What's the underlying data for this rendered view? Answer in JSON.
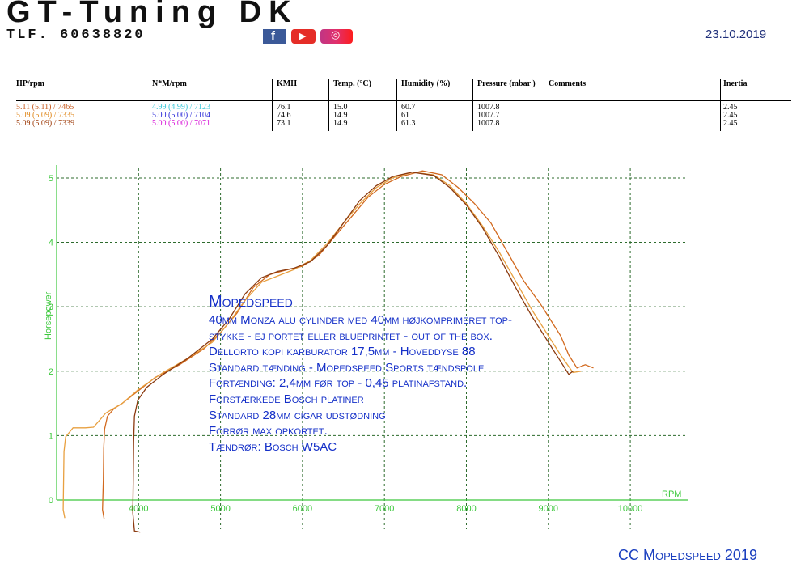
{
  "header": {
    "logo_name": "GT-Tuning DK",
    "logo_phone": "TLF. 60638820",
    "logo_icons": [
      "facebook-icon",
      "youtube-icon",
      "instagram-icon"
    ],
    "date": "23.10.2019"
  },
  "table": {
    "columns": [
      "HP/rpm",
      "N*M/rpm",
      "KMH",
      "Temp. (°C)",
      "Humidity (%)",
      "Pressure (mbar )",
      "Comments",
      "Inertia"
    ],
    "rows": [
      {
        "hp": "5.11 (5.11) / 7465",
        "nm": "4.99 (4.99) / 7123",
        "kmh": "76.1",
        "temp": "15.0",
        "humidity": "60.7",
        "pressure": "1007.8",
        "comments": "",
        "inertia": "2.45",
        "hp_color": "#c85a1e",
        "nm_color": "#38c8d8"
      },
      {
        "hp": "5.09 (5.09) / 7335",
        "nm": "5.00 (5.00) / 7104",
        "kmh": "74.6",
        "temp": "14.9",
        "humidity": "61",
        "pressure": "1007.7",
        "comments": "",
        "inertia": "2.45",
        "hp_color": "#e08a20",
        "nm_color": "#2a2ad8"
      },
      {
        "hp": "5.09 (5.09) / 7339",
        "nm": "5.00 (5.00) / 7071",
        "kmh": "73.1",
        "temp": "14.9",
        "humidity": "61.3",
        "pressure": "1007.8",
        "comments": "",
        "inertia": "2.45",
        "hp_color": "#a04010",
        "nm_color": "#d818d8"
      }
    ]
  },
  "chart_data": {
    "type": "line",
    "ylabel": "Horsepower",
    "xlabel": "RPM",
    "xlim": [
      3000,
      10700
    ],
    "ylim": [
      0,
      5.15
    ],
    "x_ticks": [
      4000,
      5000,
      6000,
      7000,
      8000,
      9000,
      10000
    ],
    "y_ticks": [
      0,
      1,
      2,
      3,
      4,
      5
    ],
    "grid": true,
    "axis_color": "#3cc83c",
    "series": [
      {
        "color": "#d2691e",
        "points": [
          [
            3580,
            -0.3
          ],
          [
            3560,
            -0.15
          ],
          [
            3570,
            0.3
          ],
          [
            3575,
            0.8
          ],
          [
            3585,
            1.1
          ],
          [
            3620,
            1.3
          ],
          [
            3700,
            1.42
          ],
          [
            3800,
            1.5
          ],
          [
            4000,
            1.7
          ],
          [
            4200,
            1.9
          ],
          [
            4500,
            2.1
          ],
          [
            4800,
            2.35
          ],
          [
            5000,
            2.6
          ],
          [
            5200,
            2.9
          ],
          [
            5400,
            3.3
          ],
          [
            5600,
            3.5
          ],
          [
            5800,
            3.57
          ],
          [
            6000,
            3.63
          ],
          [
            6200,
            3.8
          ],
          [
            6400,
            4.1
          ],
          [
            6600,
            4.4
          ],
          [
            6800,
            4.7
          ],
          [
            7000,
            4.9
          ],
          [
            7200,
            5.02
          ],
          [
            7465,
            5.11
          ],
          [
            7700,
            5.05
          ],
          [
            7900,
            4.85
          ],
          [
            8100,
            4.6
          ],
          [
            8300,
            4.3
          ],
          [
            8500,
            3.85
          ],
          [
            8700,
            3.4
          ],
          [
            8900,
            3.05
          ],
          [
            9050,
            2.75
          ],
          [
            9150,
            2.55
          ],
          [
            9250,
            2.25
          ],
          [
            9350,
            2.05
          ],
          [
            9450,
            2.1
          ],
          [
            9550,
            2.05
          ]
        ]
      },
      {
        "color": "#e8a040",
        "points": [
          [
            3100,
            -0.28
          ],
          [
            3080,
            -0.15
          ],
          [
            3085,
            0.3
          ],
          [
            3090,
            0.75
          ],
          [
            3110,
            0.98
          ],
          [
            3200,
            1.12
          ],
          [
            3350,
            1.12
          ],
          [
            3450,
            1.13
          ],
          [
            3600,
            1.35
          ],
          [
            3800,
            1.5
          ],
          [
            4000,
            1.72
          ],
          [
            4300,
            1.98
          ],
          [
            4600,
            2.2
          ],
          [
            4900,
            2.45
          ],
          [
            5100,
            2.75
          ],
          [
            5300,
            3.1
          ],
          [
            5500,
            3.38
          ],
          [
            5700,
            3.48
          ],
          [
            5900,
            3.58
          ],
          [
            6100,
            3.72
          ],
          [
            6300,
            3.98
          ],
          [
            6500,
            4.3
          ],
          [
            6700,
            4.6
          ],
          [
            6900,
            4.85
          ],
          [
            7100,
            5.0
          ],
          [
            7335,
            5.09
          ],
          [
            7600,
            5.05
          ],
          [
            7800,
            4.88
          ],
          [
            8000,
            4.6
          ],
          [
            8200,
            4.25
          ],
          [
            8400,
            3.85
          ],
          [
            8600,
            3.4
          ],
          [
            8800,
            2.95
          ],
          [
            9000,
            2.55
          ],
          [
            9150,
            2.25
          ],
          [
            9300,
            1.98
          ],
          [
            9400,
            2.0
          ]
        ]
      },
      {
        "color": "#8b3a0f",
        "points": [
          [
            4020,
            -0.5
          ],
          [
            3950,
            -0.48
          ],
          [
            3930,
            -0.2
          ],
          [
            3935,
            0.3
          ],
          [
            3940,
            0.9
          ],
          [
            3950,
            1.3
          ],
          [
            3990,
            1.55
          ],
          [
            4100,
            1.75
          ],
          [
            4300,
            1.95
          ],
          [
            4600,
            2.2
          ],
          [
            4900,
            2.5
          ],
          [
            5100,
            2.8
          ],
          [
            5300,
            3.2
          ],
          [
            5500,
            3.45
          ],
          [
            5700,
            3.55
          ],
          [
            5900,
            3.6
          ],
          [
            6100,
            3.7
          ],
          [
            6300,
            3.95
          ],
          [
            6500,
            4.3
          ],
          [
            6700,
            4.65
          ],
          [
            6900,
            4.88
          ],
          [
            7100,
            5.02
          ],
          [
            7339,
            5.09
          ],
          [
            7600,
            5.04
          ],
          [
            7800,
            4.85
          ],
          [
            8000,
            4.58
          ],
          [
            8200,
            4.22
          ],
          [
            8400,
            3.78
          ],
          [
            8600,
            3.3
          ],
          [
            8800,
            2.85
          ],
          [
            9000,
            2.45
          ],
          [
            9150,
            2.15
          ],
          [
            9250,
            1.95
          ],
          [
            9300,
            2.0
          ]
        ]
      }
    ]
  },
  "notes": {
    "title": "Mopedspeed",
    "lines": [
      "40mm Monza alu cylinder med 40mm højkomprimeret top-",
      "stykke - ej portet eller blueprintet - out of the box.",
      "Dellorto kopi karburator 17,5mm - Hoveddyse 88",
      "Standard tænding - Mopedspeed Sports tændspole",
      "Fortænding: 2,4mm før top - 0,45 platinafstand.",
      "Forstærkede Bosch platiner",
      "Standard 28mm cigar udstødning",
      "Forrør max opkortet.",
      "Tændrør: Bosch W5AC"
    ]
  },
  "footer": {
    "copyright": "CC Mopedspeed 2019"
  }
}
